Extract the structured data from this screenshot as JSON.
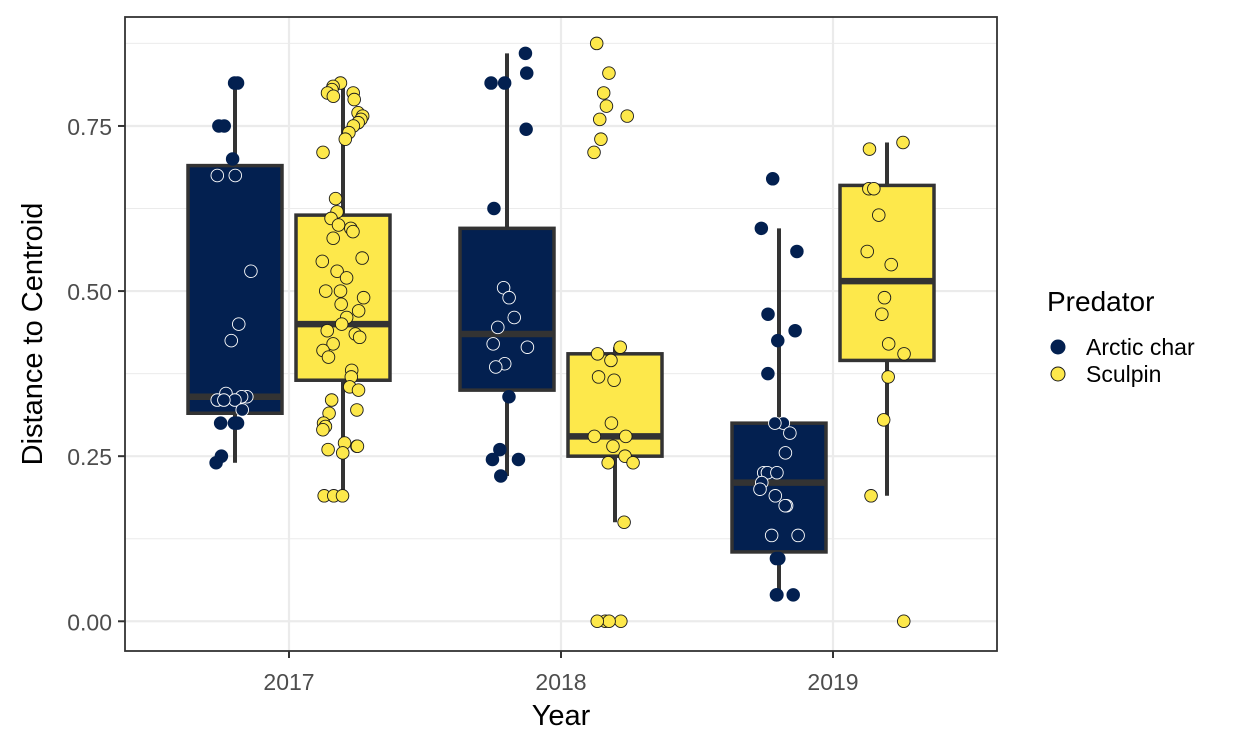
{
  "chart_data": {
    "type": "boxplot",
    "title": "",
    "xlabel": "Year",
    "ylabel": "Distance to Centroid",
    "ylim": [
      -0.045,
      0.915
    ],
    "yticks": [
      0.0,
      0.25,
      0.5,
      0.75
    ],
    "ytick_labels": [
      "0.00",
      "0.25",
      "0.50",
      "0.75"
    ],
    "categories": [
      "2017",
      "2018",
      "2019"
    ],
    "legend": {
      "title": "Predator",
      "position": "right",
      "entries": [
        "Arctic char",
        "Sculpin"
      ]
    },
    "colors": {
      "Arctic char": "#032050",
      "Sculpin": "#FDE84B",
      "box_line": "#333333",
      "grid": "#EBEBEB",
      "panel_border": "#333333"
    },
    "series": [
      {
        "name": "Arctic char",
        "boxes": [
          {
            "category": "2017",
            "min": 0.24,
            "q1": 0.315,
            "median": 0.34,
            "q3": 0.69,
            "max": 0.815
          },
          {
            "category": "2018",
            "min": 0.22,
            "q1": 0.35,
            "median": 0.435,
            "q3": 0.595,
            "max": 0.86
          },
          {
            "category": "2019",
            "min": 0.04,
            "q1": 0.105,
            "median": 0.21,
            "q3": 0.3,
            "max": 0.595
          }
        ],
        "points": [
          {
            "category": "2017",
            "values": [
              0.815,
              0.815,
              0.75,
              0.75,
              0.7,
              0.675,
              0.675,
              0.53,
              0.45,
              0.425,
              0.345,
              0.34,
              0.34,
              0.335,
              0.335,
              0.335,
              0.32,
              0.3,
              0.3,
              0.3,
              0.25,
              0.24
            ]
          },
          {
            "category": "2018",
            "values": [
              0.86,
              0.83,
              0.815,
              0.815,
              0.745,
              0.625,
              0.505,
              0.49,
              0.46,
              0.445,
              0.42,
              0.415,
              0.39,
              0.385,
              0.34,
              0.26,
              0.245,
              0.245,
              0.22
            ]
          },
          {
            "category": "2019",
            "values": [
              0.67,
              0.595,
              0.56,
              0.465,
              0.44,
              0.425,
              0.375,
              0.3,
              0.3,
              0.285,
              0.255,
              0.225,
              0.225,
              0.225,
              0.21,
              0.2,
              0.19,
              0.175,
              0.175,
              0.13,
              0.13,
              0.095,
              0.095,
              0.04,
              0.04,
              0.04
            ]
          }
        ]
      },
      {
        "name": "Sculpin",
        "boxes": [
          {
            "category": "2017",
            "min": 0.19,
            "q1": 0.365,
            "median": 0.45,
            "q3": 0.615,
            "max": 0.815
          },
          {
            "category": "2018",
            "min": 0.15,
            "q1": 0.25,
            "median": 0.28,
            "q3": 0.405,
            "max": 0.415
          },
          {
            "category": "2019",
            "min": 0.19,
            "q1": 0.395,
            "median": 0.515,
            "q3": 0.66,
            "max": 0.725
          }
        ],
        "points": [
          {
            "category": "2017",
            "values": [
              0.815,
              0.81,
              0.805,
              0.8,
              0.8,
              0.795,
              0.79,
              0.77,
              0.765,
              0.76,
              0.755,
              0.75,
              0.74,
              0.73,
              0.71,
              0.64,
              0.62,
              0.61,
              0.6,
              0.595,
              0.59,
              0.58,
              0.55,
              0.545,
              0.53,
              0.52,
              0.5,
              0.5,
              0.49,
              0.48,
              0.47,
              0.46,
              0.45,
              0.44,
              0.435,
              0.43,
              0.42,
              0.41,
              0.4,
              0.38,
              0.37,
              0.355,
              0.35,
              0.335,
              0.32,
              0.315,
              0.3,
              0.295,
              0.29,
              0.27,
              0.265,
              0.265,
              0.26,
              0.255,
              0.19,
              0.19,
              0.19
            ]
          },
          {
            "category": "2018",
            "values": [
              0.875,
              0.83,
              0.8,
              0.78,
              0.765,
              0.76,
              0.73,
              0.71,
              0.415,
              0.405,
              0.395,
              0.37,
              0.365,
              0.3,
              0.28,
              0.28,
              0.265,
              0.25,
              0.24,
              0.24,
              0.15,
              0.0,
              0.0,
              0.0,
              0.0
            ]
          },
          {
            "category": "2019",
            "values": [
              0.725,
              0.715,
              0.655,
              0.655,
              0.615,
              0.56,
              0.54,
              0.49,
              0.465,
              0.42,
              0.405,
              0.37,
              0.305,
              0.19,
              0.0
            ]
          }
        ]
      }
    ]
  }
}
